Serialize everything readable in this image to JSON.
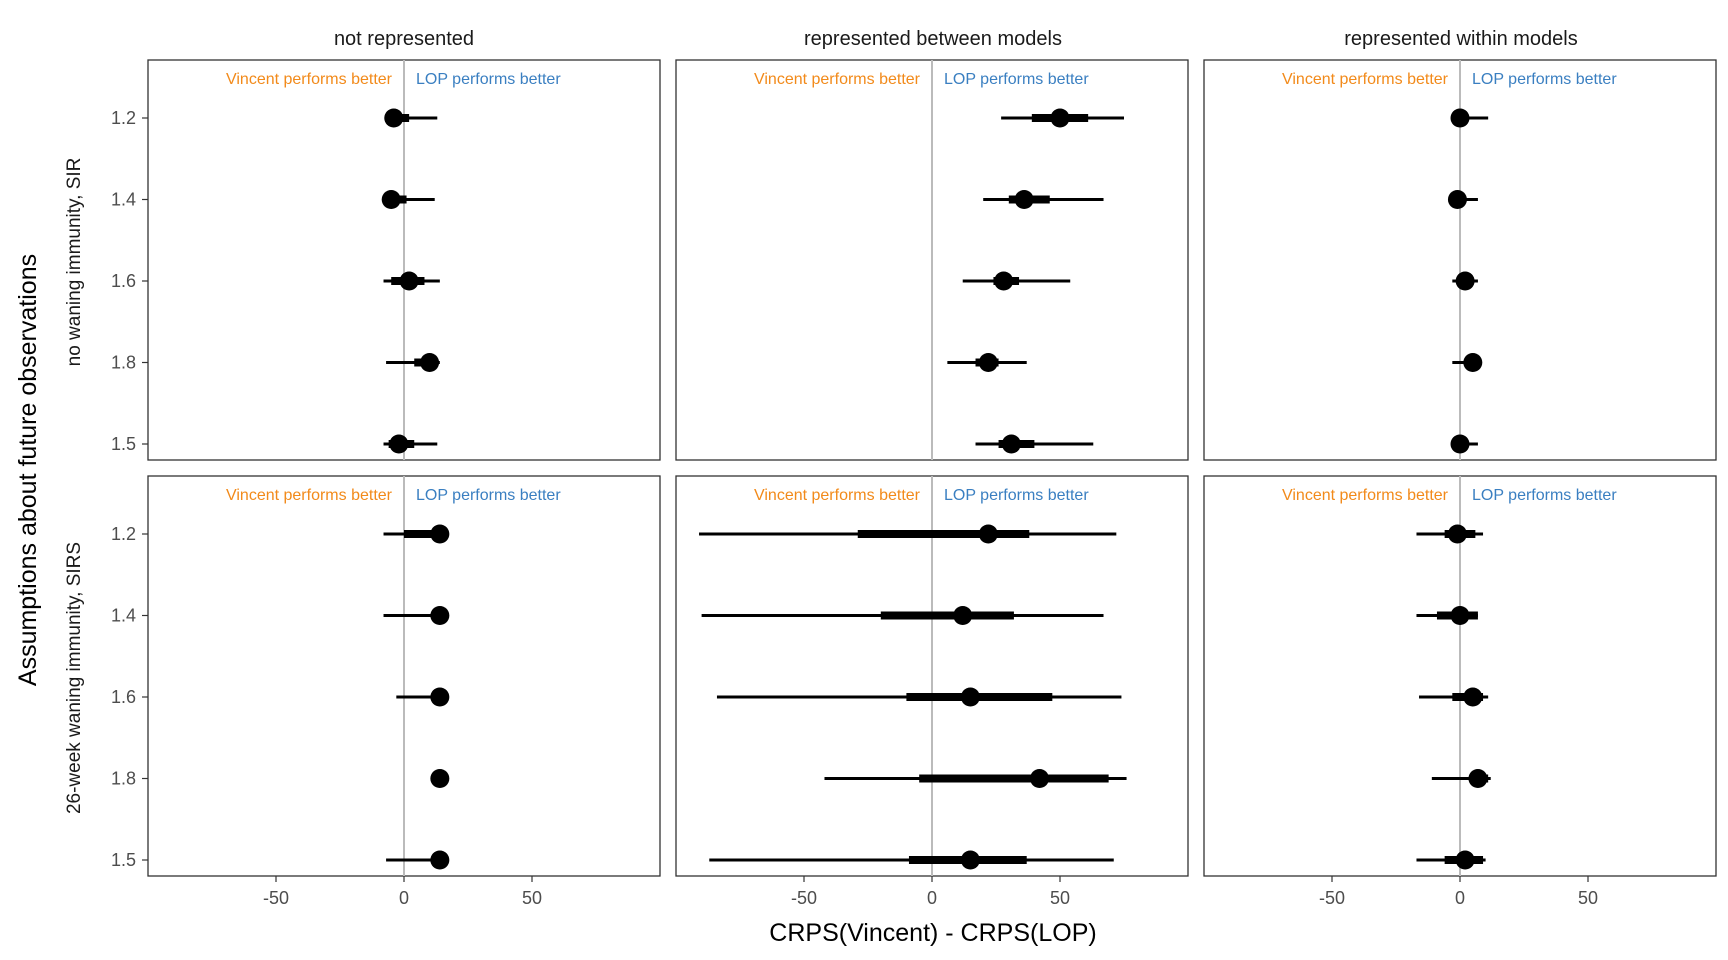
{
  "chart_data": {
    "type": "interval",
    "xlabel": "CRPS(Vincent) - CRPS(LOP)",
    "ylabel": "Assumptions about future observations",
    "xlim": [
      -100,
      100
    ],
    "x_ticks": [
      -50,
      0,
      50
    ],
    "x_tick_labels": [
      "-50",
      "0",
      "50"
    ],
    "reference_line_x": 0,
    "annotation_left": "Vincent performs better",
    "annotation_right": "LOP performs better",
    "colors": {
      "annotation_left": "#F28A1A",
      "annotation_right": "#3A7FC1",
      "reference_line": "#BBBBBB",
      "marks": "#000000",
      "panel_border": "#333333"
    },
    "categories": [
      "1.2",
      "1.4",
      "1.6",
      "1.8",
      "1.5"
    ],
    "columns": [
      "not represented",
      "represented between models",
      "represented within models"
    ],
    "rows": [
      "no waning immunity, SIR",
      "26-week waning immunity, SIRS"
    ],
    "grid": false,
    "panels": [
      {
        "row": 0,
        "col": 0,
        "points": [
          {
            "y": "1.2",
            "median": -4,
            "inner": [
              -5,
              2
            ],
            "outer": [
              -7,
              13
            ]
          },
          {
            "y": "1.4",
            "median": -5,
            "inner": [
              -5,
              1
            ],
            "outer": [
              -5,
              12
            ]
          },
          {
            "y": "1.6",
            "median": 2,
            "inner": [
              -5,
              8
            ],
            "outer": [
              -8,
              14
            ]
          },
          {
            "y": "1.8",
            "median": 10,
            "inner": [
              4,
              13
            ],
            "outer": [
              -7,
              14
            ]
          },
          {
            "y": "1.5",
            "median": -2,
            "inner": [
              -6,
              4
            ],
            "outer": [
              -8,
              13
            ]
          }
        ]
      },
      {
        "row": 0,
        "col": 1,
        "points": [
          {
            "y": "1.2",
            "median": 50,
            "inner": [
              39,
              61
            ],
            "outer": [
              27,
              75
            ]
          },
          {
            "y": "1.4",
            "median": 36,
            "inner": [
              30,
              46
            ],
            "outer": [
              20,
              67
            ]
          },
          {
            "y": "1.6",
            "median": 28,
            "inner": [
              24,
              34
            ],
            "outer": [
              12,
              54
            ]
          },
          {
            "y": "1.8",
            "median": 22,
            "inner": [
              17,
              26
            ],
            "outer": [
              6,
              37
            ]
          },
          {
            "y": "1.5",
            "median": 31,
            "inner": [
              26,
              40
            ],
            "outer": [
              17,
              63
            ]
          }
        ]
      },
      {
        "row": 0,
        "col": 2,
        "points": [
          {
            "y": "1.2",
            "median": 0,
            "inner": [
              0,
              0
            ],
            "outer": [
              -1,
              11
            ]
          },
          {
            "y": "1.4",
            "median": -1,
            "inner": [
              -1,
              0
            ],
            "outer": [
              -2,
              7
            ]
          },
          {
            "y": "1.6",
            "median": 2,
            "inner": [
              0,
              5
            ],
            "outer": [
              -3,
              7
            ]
          },
          {
            "y": "1.8",
            "median": 5,
            "inner": [
              4,
              6
            ],
            "outer": [
              -3,
              7
            ]
          },
          {
            "y": "1.5",
            "median": 0,
            "inner": [
              -1,
              2
            ],
            "outer": [
              -2,
              7
            ]
          }
        ]
      },
      {
        "row": 1,
        "col": 0,
        "points": [
          {
            "y": "1.2",
            "median": 14,
            "inner": [
              0,
              14
            ],
            "outer": [
              -8,
              14
            ]
          },
          {
            "y": "1.4",
            "median": 14,
            "inner": [
              14,
              14
            ],
            "outer": [
              -8,
              14
            ]
          },
          {
            "y": "1.6",
            "median": 14,
            "inner": [
              14,
              14
            ],
            "outer": [
              -3,
              14
            ]
          },
          {
            "y": "1.8",
            "median": 14,
            "inner": [
              14,
              14
            ],
            "outer": [
              14,
              14
            ]
          },
          {
            "y": "1.5",
            "median": 14,
            "inner": [
              14,
              14
            ],
            "outer": [
              -7,
              14
            ]
          }
        ]
      },
      {
        "row": 1,
        "col": 1,
        "points": [
          {
            "y": "1.2",
            "median": 22,
            "inner": [
              -29,
              38
            ],
            "outer": [
              -91,
              72
            ]
          },
          {
            "y": "1.4",
            "median": 12,
            "inner": [
              -20,
              32
            ],
            "outer": [
              -90,
              67
            ]
          },
          {
            "y": "1.6",
            "median": 15,
            "inner": [
              -10,
              47
            ],
            "outer": [
              -84,
              74
            ]
          },
          {
            "y": "1.8",
            "median": 42,
            "inner": [
              -5,
              69
            ],
            "outer": [
              -42,
              76
            ]
          },
          {
            "y": "1.5",
            "median": 15,
            "inner": [
              -9,
              37
            ],
            "outer": [
              -87,
              71
            ]
          }
        ]
      },
      {
        "row": 1,
        "col": 2,
        "points": [
          {
            "y": "1.2",
            "median": -1,
            "inner": [
              -6,
              6
            ],
            "outer": [
              -17,
              9
            ]
          },
          {
            "y": "1.4",
            "median": 0,
            "inner": [
              -9,
              7
            ],
            "outer": [
              -17,
              7
            ]
          },
          {
            "y": "1.6",
            "median": 5,
            "inner": [
              -3,
              9
            ],
            "outer": [
              -16,
              11
            ]
          },
          {
            "y": "1.8",
            "median": 7,
            "inner": [
              5,
              11
            ],
            "outer": [
              -11,
              12
            ]
          },
          {
            "y": "1.5",
            "median": 2,
            "inner": [
              -6,
              9
            ],
            "outer": [
              -17,
              10
            ]
          }
        ]
      }
    ]
  }
}
